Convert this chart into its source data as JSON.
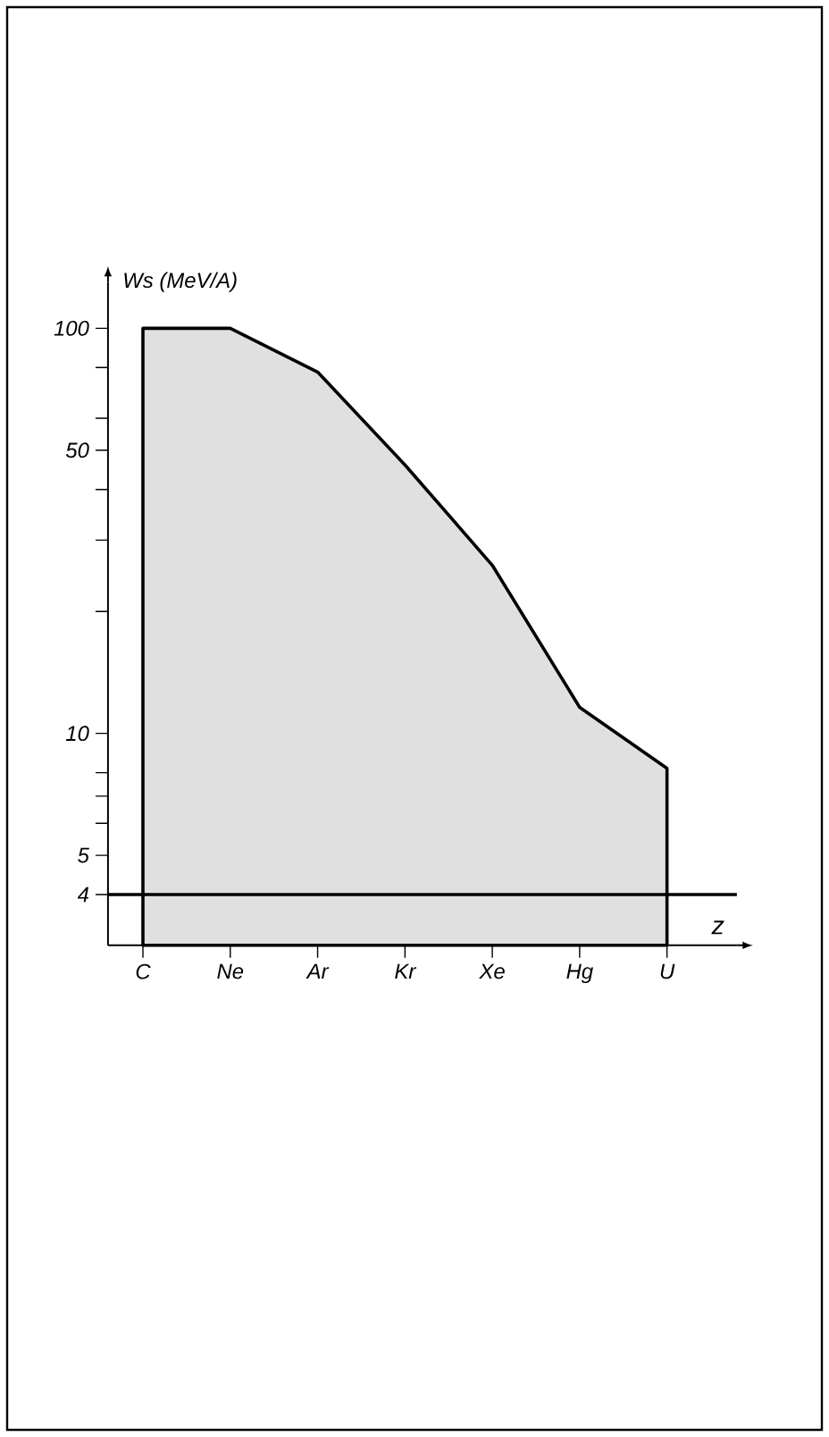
{
  "chart_data": {
    "type": "area",
    "xlabel": "z",
    "ylabel": "Ws (MeV/A)",
    "log": "y",
    "categories": [
      "C",
      "Ne",
      "Ar",
      "Kr",
      "Xe",
      "Hg",
      "U"
    ],
    "series": [
      {
        "color": "#000000",
        "values": [
          100,
          100,
          78,
          46,
          26,
          11.6,
          8.2
        ]
      }
    ],
    "ref_lines": [
      {
        "axis": "y",
        "value": 4,
        "color": "#000000"
      }
    ],
    "ylim": [
      3,
      130
    ],
    "yticks": [
      4,
      5,
      {
        "value": 6,
        "label": null
      },
      {
        "value": 7,
        "label": null
      },
      {
        "value": 8,
        "label": null
      },
      10,
      {
        "value": 20,
        "label": null
      },
      {
        "value": 30,
        "label": null
      },
      {
        "value": 40,
        "label": null
      },
      50,
      {
        "value": 60,
        "label": null
      },
      {
        "value": 80,
        "label": null
      },
      100
    ]
  }
}
